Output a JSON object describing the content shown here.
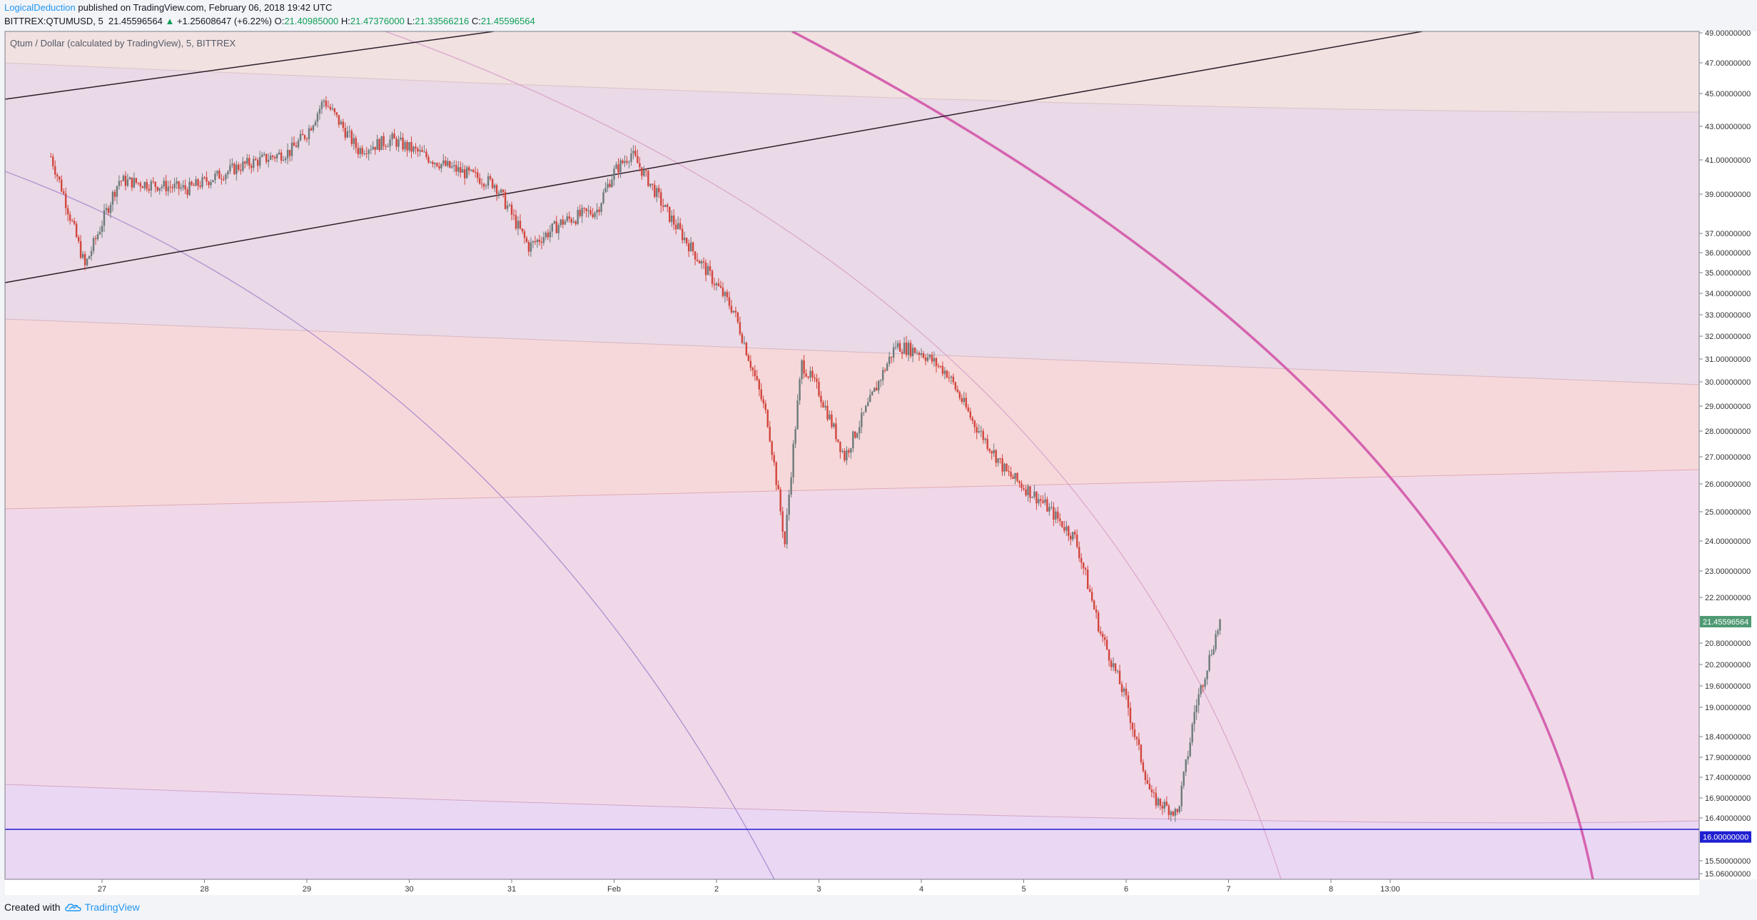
{
  "header": {
    "author": "LogicalDeduction",
    "published": "published on TradingView.com, February 06, 2018 19:42 UTC",
    "symbol": "BITTREX:QTUMUSD, 5",
    "last": "21.45596564",
    "change_arrow": "▲",
    "change": "+1.25608647 (+6.22%)",
    "o_label": "O:",
    "o_value": "21.40985000",
    "h_label": "H:",
    "h_value": "21.47376000",
    "l_label": "L:",
    "l_value": "21.33566216",
    "c_label": "C:",
    "c_value": "21.45596564"
  },
  "footer": {
    "created_with": "Created with",
    "brand": "TradingView"
  },
  "colors": {
    "candle_up": "#6b7a7a",
    "candle_down": "#d2453c",
    "hline": "#1f1fd1",
    "arc_major": "#d966b3",
    "arc_minor": "#c79ac9",
    "trend": "#2a1f2a",
    "price_tag": "#4f9a73"
  },
  "chart_data": {
    "type": "candlestick",
    "title": "Qtum / Dollar (calculated by TradingView), 5, BITTREX",
    "xlabel": "",
    "ylabel": "",
    "x_ticks": [
      "27",
      "28",
      "29",
      "30",
      "31",
      "Feb",
      "2",
      "3",
      "4",
      "5",
      "6",
      "7",
      "8",
      "13:00"
    ],
    "y_ticks": [
      "49.00000000",
      "47.00000000",
      "45.00000000",
      "43.00000000",
      "41.00000000",
      "39.00000000",
      "37.00000000",
      "36.00000000",
      "35.00000000",
      "34.00000000",
      "33.00000000",
      "32.00000000",
      "31.00000000",
      "30.00000000",
      "29.00000000",
      "28.00000000",
      "27.00000000",
      "26.00000000",
      "25.00000000",
      "24.00000000",
      "23.00000000",
      "22.20000000",
      "20.80000000",
      "20.20000000",
      "19.60000000",
      "19.00000000",
      "18.40000000",
      "17.90000000",
      "17.40000000",
      "16.90000000",
      "16.40000000",
      "15.50000000",
      "15.06000000"
    ],
    "current_price_label": "21.45596564",
    "horizontal_line_label": "16.00000000",
    "horizontal_line_value": 16.0,
    "price_path": [
      [
        "26 Jan 12:00",
        41.2
      ],
      [
        "26 Jan 20:00",
        35.3
      ],
      [
        "27 Jan 04:00",
        39.8
      ],
      [
        "27 Jan 20:00",
        39.3
      ],
      [
        "28 Jan 08:00",
        40.6
      ],
      [
        "28 Jan 20:00",
        41.5
      ],
      [
        "29 Jan 00:00",
        42.6
      ],
      [
        "29 Jan 04:00",
        44.6
      ],
      [
        "29 Jan 12:00",
        41.6
      ],
      [
        "29 Jan 20:00",
        42.2
      ],
      [
        "30 Jan 08:00",
        40.7
      ],
      [
        "30 Jan 20:00",
        39.6
      ],
      [
        "31 Jan 04:00",
        36.3
      ],
      [
        "31 Jan 12:00",
        37.6
      ],
      [
        "31 Jan 20:00",
        38.2
      ],
      [
        "1 Feb 00:00",
        40.3
      ],
      [
        "1 Feb 04:00",
        41.4
      ],
      [
        "1 Feb 12:00",
        38.2
      ],
      [
        "1 Feb 20:00",
        35.6
      ],
      [
        "2 Feb 04:00",
        33.2
      ],
      [
        "2 Feb 12:00",
        28.4
      ],
      [
        "2 Feb 16:00",
        23.9
      ],
      [
        "2 Feb 20:00",
        30.8
      ],
      [
        "3 Feb 00:00",
        29.6
      ],
      [
        "3 Feb 06:00",
        27.0
      ],
      [
        "3 Feb 12:00",
        29.2
      ],
      [
        "3 Feb 18:00",
        31.6
      ],
      [
        "4 Feb 00:00",
        31.3
      ],
      [
        "4 Feb 06:00",
        30.4
      ],
      [
        "4 Feb 12:00",
        28.4
      ],
      [
        "4 Feb 20:00",
        26.4
      ],
      [
        "5 Feb 04:00",
        25.4
      ],
      [
        "5 Feb 12:00",
        24.1
      ],
      [
        "5 Feb 18:00",
        21.1
      ],
      [
        "6 Feb 00:00",
        19.2
      ],
      [
        "6 Feb 06:00",
        16.9
      ],
      [
        "6 Feb 12:00",
        16.5
      ],
      [
        "6 Feb 16:00",
        18.9
      ],
      [
        "6 Feb 20:00",
        20.6
      ],
      [
        "6 Feb 22:00",
        21.46
      ]
    ]
  }
}
